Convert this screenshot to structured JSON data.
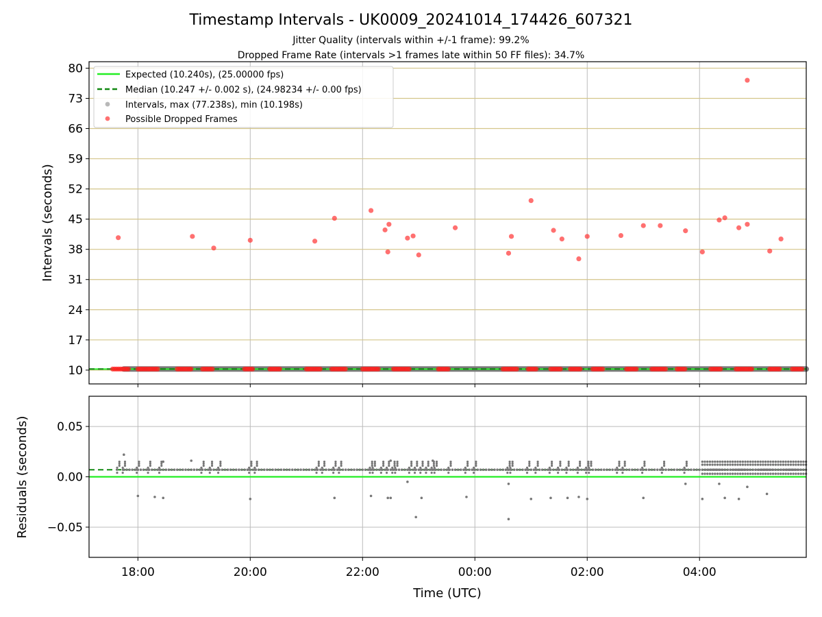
{
  "chart_data": [
    {
      "type": "scatter",
      "title": "Timestamp Intervals - UK0009_20241014_174426_607321",
      "subtitle_lines": [
        "Jitter Quality (intervals within +/-1 frame): 99.2%",
        "Dropped Frame Rate (intervals >1 frames late within 50 FF files): 34.7%"
      ],
      "ylabel": "Intervals (seconds)",
      "xlabel": "",
      "x_unit": "hours since 18:00 UTC",
      "xlim": [
        -0.87,
        11.9
      ],
      "ylim": [
        6.8,
        81.5
      ],
      "yticks": [
        10,
        17,
        24,
        31,
        38,
        45,
        52,
        59,
        66,
        73,
        80
      ],
      "ytick_labels": [
        "10",
        "17",
        "24",
        "31",
        "38",
        "45",
        "52",
        "59",
        "66",
        "73",
        "80"
      ],
      "xticks": [
        0,
        2,
        4,
        6,
        8,
        10
      ],
      "grid": true,
      "legend_position": "top-left",
      "legend": [
        {
          "label": "Expected (10.240s), (25.00000 fps)",
          "style": "line",
          "color": "#22ee22"
        },
        {
          "label": "Median (10.247 +/- 0.002 s), (24.98234 +/- 0.00 fps)",
          "style": "dashed",
          "color": "#118811"
        },
        {
          "label": "Intervals, max (77.238s), min (10.198s)",
          "style": "marker",
          "color": "#888888"
        },
        {
          "label": "Possible Dropped Frames",
          "style": "marker",
          "color": "#ff3333"
        }
      ],
      "expected_value": 10.24,
      "median_value": 10.247,
      "intervals_span": [
        -0.25,
        11.9
      ],
      "intervals_value": 10.247,
      "dropped_frames_high": [
        {
          "x": -0.35,
          "y": 40.7
        },
        {
          "x": 0.97,
          "y": 41.0
        },
        {
          "x": 1.35,
          "y": 38.3
        },
        {
          "x": 2.0,
          "y": 40.1
        },
        {
          "x": 3.15,
          "y": 39.9
        },
        {
          "x": 3.5,
          "y": 45.2
        },
        {
          "x": 4.15,
          "y": 47.0
        },
        {
          "x": 4.4,
          "y": 42.5
        },
        {
          "x": 4.47,
          "y": 43.8
        },
        {
          "x": 4.45,
          "y": 37.4
        },
        {
          "x": 4.8,
          "y": 40.6
        },
        {
          "x": 4.9,
          "y": 41.1
        },
        {
          "x": 5.0,
          "y": 36.7
        },
        {
          "x": 5.65,
          "y": 43.0
        },
        {
          "x": 6.65,
          "y": 41.0
        },
        {
          "x": 6.6,
          "y": 37.1
        },
        {
          "x": 7.0,
          "y": 49.3
        },
        {
          "x": 7.4,
          "y": 42.4
        },
        {
          "x": 7.55,
          "y": 40.4
        },
        {
          "x": 7.85,
          "y": 35.8
        },
        {
          "x": 8.0,
          "y": 41.0
        },
        {
          "x": 8.6,
          "y": 41.2
        },
        {
          "x": 9.0,
          "y": 43.5
        },
        {
          "x": 9.3,
          "y": 43.5
        },
        {
          "x": 9.75,
          "y": 42.3
        },
        {
          "x": 10.05,
          "y": 37.4
        },
        {
          "x": 10.35,
          "y": 44.8
        },
        {
          "x": 10.45,
          "y": 45.3
        },
        {
          "x": 10.7,
          "y": 43.0
        },
        {
          "x": 10.85,
          "y": 43.8
        },
        {
          "x": 10.85,
          "y": 77.2
        },
        {
          "x": 11.25,
          "y": 37.6
        },
        {
          "x": 11.45,
          "y": 40.4
        }
      ],
      "dropped_frame_clusters": [
        {
          "from": -0.45,
          "to": -0.15,
          "y": 10.25
        },
        {
          "from": 0.0,
          "to": 0.35,
          "y": 10.25
        },
        {
          "from": 0.7,
          "to": 0.95,
          "y": 10.25
        },
        {
          "from": 1.15,
          "to": 1.35,
          "y": 10.25
        },
        {
          "from": 1.9,
          "to": 2.05,
          "y": 10.25
        },
        {
          "from": 2.35,
          "to": 2.55,
          "y": 10.25
        },
        {
          "from": 3.0,
          "to": 3.25,
          "y": 10.25
        },
        {
          "from": 3.45,
          "to": 3.7,
          "y": 10.25
        },
        {
          "from": 4.0,
          "to": 4.3,
          "y": 10.25
        },
        {
          "from": 4.55,
          "to": 4.85,
          "y": 10.25
        },
        {
          "from": 5.35,
          "to": 5.55,
          "y": 10.25
        },
        {
          "from": 6.5,
          "to": 6.75,
          "y": 10.25
        },
        {
          "from": 6.95,
          "to": 7.1,
          "y": 10.25
        },
        {
          "from": 7.35,
          "to": 7.55,
          "y": 10.25
        },
        {
          "from": 7.7,
          "to": 7.9,
          "y": 10.25
        },
        {
          "from": 8.1,
          "to": 8.3,
          "y": 10.25
        },
        {
          "from": 8.7,
          "to": 8.9,
          "y": 10.25
        },
        {
          "from": 9.15,
          "to": 9.4,
          "y": 10.25
        },
        {
          "from": 9.6,
          "to": 9.75,
          "y": 10.25
        },
        {
          "from": 10.2,
          "to": 10.4,
          "y": 10.25
        },
        {
          "from": 10.65,
          "to": 10.95,
          "y": 10.25
        },
        {
          "from": 11.25,
          "to": 11.45,
          "y": 10.25
        },
        {
          "from": 11.65,
          "to": 11.85,
          "y": 10.25
        }
      ]
    },
    {
      "type": "scatter",
      "title": "",
      "xlabel": "Time (UTC)",
      "ylabel": "Residuals (seconds)",
      "x_unit": "hours since 18:00 UTC",
      "xlim": [
        -0.87,
        11.9
      ],
      "ylim": [
        -0.08,
        0.08
      ],
      "yticks": [
        -0.05,
        0.0,
        0.05
      ],
      "ytick_labels": [
        "−0.05",
        "0.00",
        "0.05"
      ],
      "xticks": [
        0,
        2,
        4,
        6,
        8,
        10
      ],
      "xtick_labels": [
        "18:00",
        "20:00",
        "22:00",
        "00:00",
        "02:00",
        "04:00"
      ],
      "grid": true,
      "expected_residual": 0.0,
      "median_residual": 0.007,
      "band": {
        "from": -0.25,
        "to": 11.9,
        "y": 0.007
      },
      "dense_region": {
        "from": 10.05,
        "to": 11.9,
        "ymin": 0.0,
        "ymax": 0.016
      },
      "residual_columns": [
        -0.25,
        -0.35,
        0.0,
        0.2,
        0.4,
        1.15,
        1.3,
        1.45,
        2.0,
        2.1,
        3.2,
        3.3,
        3.5,
        3.6,
        4.15,
        4.2,
        4.35,
        4.45,
        4.55,
        4.6,
        4.85,
        4.95,
        5.05,
        5.15,
        5.25,
        5.3,
        5.55,
        5.85,
        6.0,
        6.6,
        6.65,
        6.95,
        7.1,
        7.35,
        7.5,
        7.65,
        7.85,
        8.0,
        8.05,
        8.55,
        8.65,
        9.0,
        9.35,
        9.75
      ],
      "residual_outliers": [
        {
          "x": -0.25,
          "y": 0.022
        },
        {
          "x": 0.0,
          "y": -0.019
        },
        {
          "x": 0.3,
          "y": -0.02
        },
        {
          "x": 0.45,
          "y": -0.021
        },
        {
          "x": 2.0,
          "y": -0.022
        },
        {
          "x": 3.5,
          "y": -0.021
        },
        {
          "x": 4.15,
          "y": -0.019
        },
        {
          "x": 4.45,
          "y": -0.021
        },
        {
          "x": 4.5,
          "y": -0.021
        },
        {
          "x": 4.8,
          "y": -0.005
        },
        {
          "x": 4.95,
          "y": -0.04
        },
        {
          "x": 5.05,
          "y": -0.021
        },
        {
          "x": 5.85,
          "y": -0.02
        },
        {
          "x": 6.6,
          "y": -0.007
        },
        {
          "x": 6.6,
          "y": -0.042
        },
        {
          "x": 7.0,
          "y": -0.022
        },
        {
          "x": 7.35,
          "y": -0.021
        },
        {
          "x": 7.65,
          "y": -0.021
        },
        {
          "x": 7.85,
          "y": -0.02
        },
        {
          "x": 8.0,
          "y": -0.022
        },
        {
          "x": 9.0,
          "y": -0.021
        },
        {
          "x": 9.75,
          "y": -0.007
        },
        {
          "x": 10.05,
          "y": -0.022
        },
        {
          "x": 10.35,
          "y": -0.007
        },
        {
          "x": 10.45,
          "y": -0.021
        },
        {
          "x": 10.7,
          "y": -0.022
        },
        {
          "x": 10.85,
          "y": -0.01
        },
        {
          "x": 11.2,
          "y": -0.017
        },
        {
          "x": 0.45,
          "y": 0.015
        },
        {
          "x": 0.95,
          "y": 0.016
        },
        {
          "x": 4.5,
          "y": 0.016
        },
        {
          "x": 5.25,
          "y": 0.016
        }
      ]
    }
  ]
}
